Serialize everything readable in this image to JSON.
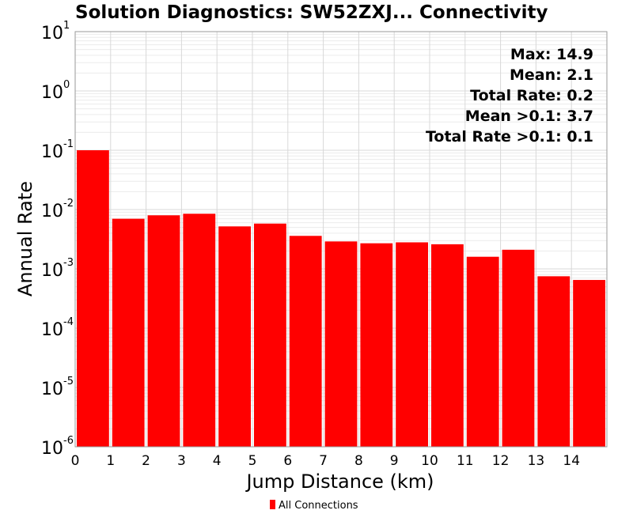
{
  "chart_data": {
    "type": "bar",
    "title": "Solution Diagnostics: SW52ZXJ... Connectivity",
    "xlabel": "Jump Distance (km)",
    "ylabel": "Annual Rate",
    "x_ticks": [
      "0",
      "1",
      "2",
      "3",
      "4",
      "5",
      "6",
      "7",
      "8",
      "9",
      "10",
      "11",
      "12",
      "13",
      "14"
    ],
    "xlim": [
      0,
      15
    ],
    "y_scale": "log",
    "y_ticks": [
      {
        "base": "10",
        "exp": "1"
      },
      {
        "base": "10",
        "exp": "0"
      },
      {
        "base": "10",
        "exp": "-1"
      },
      {
        "base": "10",
        "exp": "-2"
      },
      {
        "base": "10",
        "exp": "-3"
      },
      {
        "base": "10",
        "exp": "-4"
      },
      {
        "base": "10",
        "exp": "-5"
      },
      {
        "base": "10",
        "exp": "-6"
      }
    ],
    "ylim": [
      1e-06,
      10
    ],
    "grid": true,
    "series": [
      {
        "name": "All Connections",
        "color": "#ff0000",
        "x": [
          0.5,
          1.5,
          2.5,
          3.5,
          4.5,
          5.5,
          6.5,
          7.5,
          8.5,
          9.5,
          10.5,
          11.5,
          12.5,
          13.5,
          14.5
        ],
        "values": [
          0.1,
          0.007,
          0.008,
          0.0085,
          0.0052,
          0.0058,
          0.0036,
          0.0029,
          0.0027,
          0.0028,
          0.0026,
          0.0016,
          0.0021,
          0.00075,
          0.00065
        ]
      }
    ],
    "annotations": [
      "Max: 14.9",
      "Mean: 2.1",
      "Total Rate: 0.2",
      "Mean >0.1: 3.7",
      "Total Rate >0.1: 0.1"
    ],
    "legend": {
      "placement": "bottom-center",
      "entries": [
        "All Connections"
      ]
    }
  }
}
